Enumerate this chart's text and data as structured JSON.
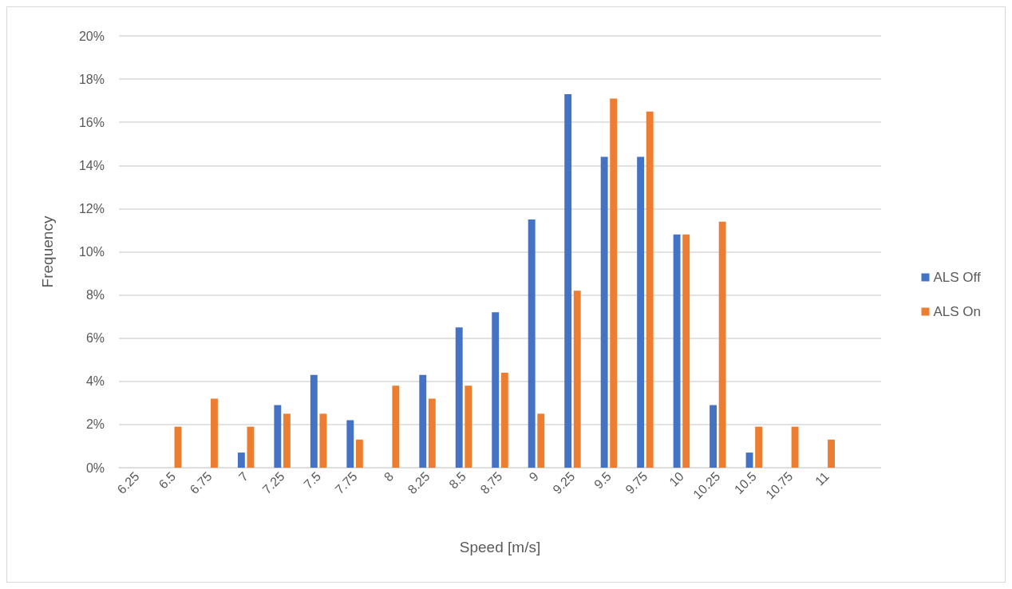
{
  "chart_data": {
    "type": "bar",
    "xlabel": "Speed [m/s]",
    "ylabel": "Frequency",
    "categories": [
      "6.25",
      "6.5",
      "6.75",
      "7",
      "7.25",
      "7.5",
      "7.75",
      "8",
      "8.25",
      "8.5",
      "8.75",
      "9",
      "9.25",
      "9.5",
      "9.75",
      "10",
      "10.25",
      "10.5",
      "10.75",
      "11",
      null
    ],
    "series": [
      {
        "name": "ALS Off",
        "color": "#4472c4",
        "values": [
          0,
          0,
          0,
          0.7,
          2.9,
          4.3,
          2.2,
          0,
          4.3,
          6.5,
          7.2,
          11.5,
          17.3,
          14.4,
          14.4,
          10.8,
          2.9,
          0.7,
          0,
          0,
          0
        ]
      },
      {
        "name": "ALS On",
        "color": "#ed7d31",
        "values": [
          0,
          1.9,
          3.2,
          1.9,
          2.5,
          2.5,
          1.3,
          3.8,
          3.2,
          3.8,
          4.4,
          2.5,
          8.2,
          17.1,
          16.5,
          10.8,
          11.4,
          1.9,
          1.9,
          1.3,
          0
        ]
      }
    ],
    "ylim": [
      0,
      20
    ],
    "yticks": [
      {
        "value": 0,
        "label": "0%"
      },
      {
        "value": 2,
        "label": "2%"
      },
      {
        "value": 4,
        "label": "4%"
      },
      {
        "value": 6,
        "label": "6%"
      },
      {
        "value": 8,
        "label": "8%"
      },
      {
        "value": 10,
        "label": "10%"
      },
      {
        "value": 12,
        "label": "12%"
      },
      {
        "value": 14,
        "label": "14%"
      },
      {
        "value": 16,
        "label": "16%"
      },
      {
        "value": 18,
        "label": "18%"
      },
      {
        "value": 20,
        "label": "20%"
      }
    ],
    "grid": "y",
    "legend": "right"
  }
}
